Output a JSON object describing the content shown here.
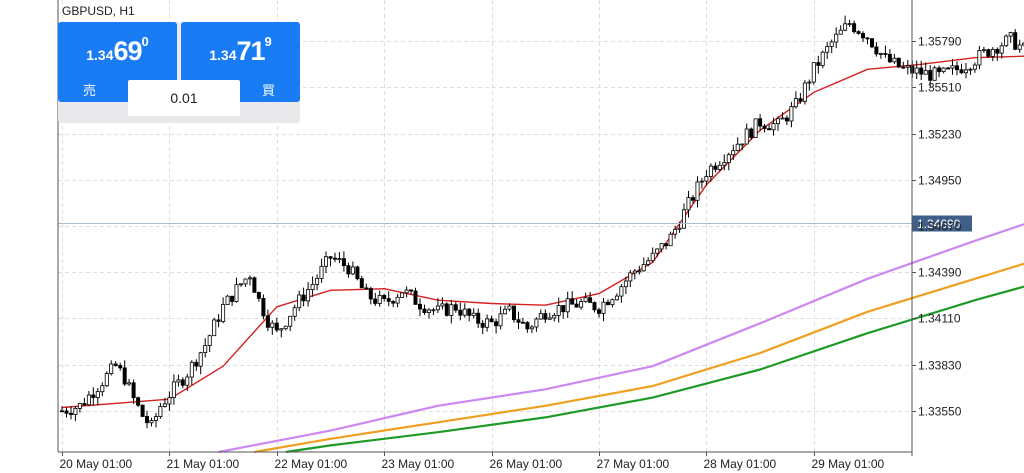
{
  "symbol_label": "GBPUSD, H1",
  "trade_panel": {
    "sell": {
      "prefix": "1.34",
      "big": "69",
      "sup": "0",
      "label": "売"
    },
    "buy": {
      "prefix": "1.34",
      "big": "71",
      "sup": "9",
      "label": "買"
    },
    "lot": "0.01"
  },
  "colors": {
    "ma_red": "#d62020",
    "ma_violet": "#cc88f0",
    "ma_orange": "#f0a020",
    "ma_green": "#1e9a28",
    "price_line": "#a8bccf",
    "price_tag": "#3d5f88"
  },
  "chart_data": {
    "type": "candlestick",
    "symbol": "GBPUSD",
    "timeframe": "H1",
    "ylim": [
      1.333,
      1.3604
    ],
    "y_ticks": [
      "1.33550",
      "1.33830",
      "1.34110",
      "1.34390",
      "1.34670",
      "1.34950",
      "1.35230",
      "1.35510",
      "1.35790"
    ],
    "x_ticks": [
      "20 May 01:00",
      "21 May 01:00",
      "22 May 01:00",
      "23 May 01:00",
      "26 May 01:00",
      "27 May 01:00",
      "28 May 01:00",
      "29 May 01:00"
    ],
    "bars_per_day": 24,
    "grid": true,
    "current_price": {
      "value": 1.3469,
      "label": "1.34690"
    },
    "close_path": [
      [
        0,
        1.3355
      ],
      [
        4,
        1.3358
      ],
      [
        8,
        1.337
      ],
      [
        12,
        1.3382
      ],
      [
        14,
        1.3375
      ],
      [
        16,
        1.3362
      ],
      [
        18,
        1.3352
      ],
      [
        20,
        1.3345
      ],
      [
        22,
        1.3358
      ],
      [
        24,
        1.3365
      ],
      [
        28,
        1.3378
      ],
      [
        32,
        1.3395
      ],
      [
        36,
        1.3418
      ],
      [
        40,
        1.3432
      ],
      [
        42,
        1.3438
      ],
      [
        44,
        1.3422
      ],
      [
        46,
        1.341
      ],
      [
        48,
        1.3402
      ],
      [
        52,
        1.3418
      ],
      [
        56,
        1.3432
      ],
      [
        60,
        1.3448
      ],
      [
        64,
        1.3442
      ],
      [
        68,
        1.3425
      ],
      [
        72,
        1.342
      ],
      [
        76,
        1.3428
      ],
      [
        80,
        1.342
      ],
      [
        84,
        1.3415
      ],
      [
        88,
        1.3418
      ],
      [
        92,
        1.341
      ],
      [
        96,
        1.3408
      ],
      [
        100,
        1.3415
      ],
      [
        104,
        1.3405
      ],
      [
        108,
        1.3415
      ],
      [
        112,
        1.3418
      ],
      [
        116,
        1.342
      ],
      [
        120,
        1.3418
      ],
      [
        124,
        1.3428
      ],
      [
        128,
        1.344
      ],
      [
        132,
        1.3448
      ],
      [
        136,
        1.346
      ],
      [
        140,
        1.348
      ],
      [
        144,
        1.35
      ],
      [
        148,
        1.351
      ],
      [
        152,
        1.352
      ],
      [
        156,
        1.353
      ],
      [
        160,
        1.3528
      ],
      [
        164,
        1.354
      ],
      [
        168,
        1.3562
      ],
      [
        172,
        1.3578
      ],
      [
        176,
        1.359
      ],
      [
        180,
        1.3582
      ],
      [
        184,
        1.3568
      ],
      [
        188,
        1.3562
      ],
      [
        192,
        1.356
      ],
      [
        196,
        1.3558
      ],
      [
        200,
        1.3562
      ],
      [
        204,
        1.3568
      ],
      [
        208,
        1.3575
      ],
      [
        212,
        1.358
      ],
      [
        216,
        1.3572
      ],
      [
        220,
        1.356
      ],
      [
        224,
        1.3548
      ],
      [
        228,
        1.3538
      ],
      [
        232,
        1.3548
      ],
      [
        236,
        1.3555
      ],
      [
        240,
        1.354
      ],
      [
        244,
        1.352
      ],
      [
        248,
        1.3508
      ],
      [
        252,
        1.351
      ],
      [
        256,
        1.3505
      ],
      [
        260,
        1.3502
      ],
      [
        264,
        1.351
      ],
      [
        268,
        1.349
      ],
      [
        272,
        1.3475
      ],
      [
        276,
        1.3478
      ],
      [
        280,
        1.349
      ],
      [
        284,
        1.3505
      ],
      [
        288,
        1.3498
      ],
      [
        292,
        1.348
      ],
      [
        296,
        1.3472
      ],
      [
        300,
        1.3468
      ],
      [
        304,
        1.347
      ],
      [
        308,
        1.3468
      ],
      [
        310,
        1.3469
      ]
    ],
    "series": [
      {
        "color": "#d62020",
        "points": [
          [
            0,
            1.3357
          ],
          [
            24,
            1.3362
          ],
          [
            36,
            1.3382
          ],
          [
            48,
            1.3418
          ],
          [
            60,
            1.3428
          ],
          [
            72,
            1.3429
          ],
          [
            84,
            1.3422
          ],
          [
            96,
            1.342
          ],
          [
            108,
            1.3419
          ],
          [
            120,
            1.3426
          ],
          [
            132,
            1.3445
          ],
          [
            144,
            1.3492
          ],
          [
            156,
            1.3525
          ],
          [
            168,
            1.3548
          ],
          [
            180,
            1.3562
          ],
          [
            192,
            1.3565
          ],
          [
            204,
            1.3569
          ],
          [
            216,
            1.357
          ],
          [
            228,
            1.3565
          ],
          [
            240,
            1.3555
          ],
          [
            252,
            1.3538
          ],
          [
            264,
            1.352
          ],
          [
            276,
            1.35
          ],
          [
            288,
            1.349
          ],
          [
            300,
            1.3478
          ],
          [
            310,
            1.3473
          ]
        ]
      },
      {
        "color": "#cc88f0",
        "points": [
          [
            35,
            1.333
          ],
          [
            60,
            1.3343
          ],
          [
            84,
            1.3358
          ],
          [
            108,
            1.3368
          ],
          [
            132,
            1.3382
          ],
          [
            156,
            1.3408
          ],
          [
            180,
            1.3435
          ],
          [
            204,
            1.3458
          ],
          [
            228,
            1.348
          ],
          [
            240,
            1.3494
          ],
          [
            264,
            1.3512
          ],
          [
            288,
            1.3526
          ],
          [
            300,
            1.3529
          ],
          [
            310,
            1.3526
          ]
        ]
      },
      {
        "color": "#f0a020",
        "points": [
          [
            43,
            1.333
          ],
          [
            60,
            1.3338
          ],
          [
            84,
            1.3348
          ],
          [
            108,
            1.3358
          ],
          [
            132,
            1.337
          ],
          [
            156,
            1.339
          ],
          [
            180,
            1.3415
          ],
          [
            204,
            1.3435
          ],
          [
            228,
            1.3455
          ],
          [
            252,
            1.3475
          ],
          [
            276,
            1.3488
          ],
          [
            300,
            1.3497
          ],
          [
            310,
            1.3502
          ]
        ]
      },
      {
        "color": "#1e9a28",
        "points": [
          [
            50,
            1.333
          ],
          [
            60,
            1.3334
          ],
          [
            84,
            1.3342
          ],
          [
            108,
            1.3351
          ],
          [
            132,
            1.3363
          ],
          [
            156,
            1.338
          ],
          [
            180,
            1.3402
          ],
          [
            204,
            1.3422
          ],
          [
            228,
            1.344
          ],
          [
            252,
            1.346
          ],
          [
            276,
            1.3474
          ],
          [
            300,
            1.3485
          ],
          [
            310,
            1.349
          ]
        ]
      }
    ]
  }
}
